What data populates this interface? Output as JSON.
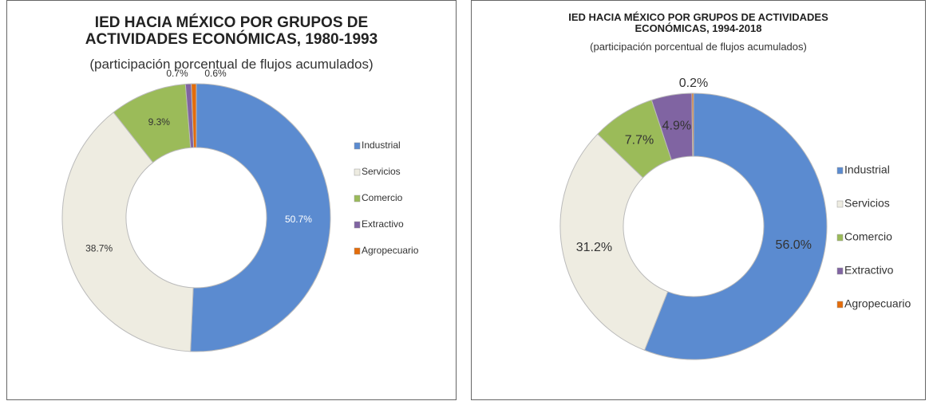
{
  "chart_data": [
    {
      "type": "pie",
      "donut": true,
      "title": "IED HACIA MÉXICO POR GRUPOS DE ACTIVIDADES ECONÓMICAS, 1980-1993",
      "subtitle": "(participación porcentual de flujos acumulados)",
      "categories": [
        "Industrial",
        "Servicios",
        "Comercio",
        "Extractivo",
        "Agropecuario"
      ],
      "values": [
        50.7,
        38.7,
        9.3,
        0.7,
        0.6
      ],
      "value_labels": [
        "50.7%",
        "38.7%",
        "9.3%",
        "0.7%",
        "0.6%"
      ],
      "colors": [
        "#5b8bd0",
        "#eeece1",
        "#9bbb59",
        "#8064a2",
        "#e46c0a"
      ],
      "legend": "right"
    },
    {
      "type": "pie",
      "donut": true,
      "title": "IED HACIA MÉXICO POR GRUPOS DE ACTIVIDADES ECONÓMICAS, 1994-2018",
      "subtitle": "(participación porcentual de flujos acumulados)",
      "categories": [
        "Industrial",
        "Servicios",
        "Comercio",
        "Extractivo",
        "Agropecuario"
      ],
      "values": [
        56.0,
        31.2,
        7.7,
        4.9,
        0.2
      ],
      "value_labels": [
        "56.0%",
        "31.2%",
        "7.7%",
        "4.9%",
        "0.2%"
      ],
      "colors": [
        "#5b8bd0",
        "#eeece1",
        "#9bbb59",
        "#8064a2",
        "#e46c0a"
      ],
      "legend": "right"
    }
  ]
}
